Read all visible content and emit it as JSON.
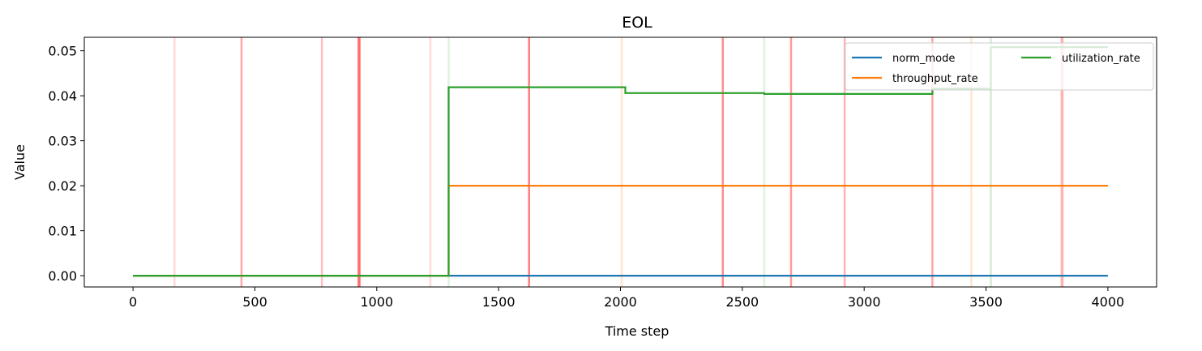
{
  "chart_data": {
    "type": "line",
    "title": "EOL",
    "xlabel": "Time step",
    "ylabel": "Value",
    "xlim": [
      -200,
      4200
    ],
    "ylim": [
      -0.0025,
      0.053
    ],
    "xticks": [
      0,
      500,
      1000,
      1500,
      2000,
      2500,
      3000,
      3500,
      4000
    ],
    "xtick_labels": [
      "0",
      "500",
      "1000",
      "1500",
      "2000",
      "2500",
      "3000",
      "3500",
      "4000"
    ],
    "yticks": [
      0.0,
      0.01,
      0.02,
      0.03,
      0.04,
      0.05
    ],
    "ytick_labels": [
      "0.00",
      "0.01",
      "0.02",
      "0.03",
      "0.04",
      "0.05"
    ],
    "grid": false,
    "legend_position": "top-right",
    "series": [
      {
        "name": "norm_mode",
        "color": "#1f77b4",
        "step": true,
        "points": [
          [
            0,
            0.0
          ],
          [
            4000,
            0.0
          ]
        ]
      },
      {
        "name": "throughput_rate",
        "color": "#ff7f0e",
        "step": true,
        "points": [
          [
            0,
            0.0
          ],
          [
            1295,
            0.0
          ],
          [
            1295,
            0.02
          ],
          [
            4000,
            0.02
          ]
        ]
      },
      {
        "name": "utilization_rate",
        "color": "#2ca02c",
        "step": true,
        "points": [
          [
            0,
            0.0
          ],
          [
            1295,
            0.0
          ],
          [
            1295,
            0.0419
          ],
          [
            2020,
            0.0419
          ],
          [
            2020,
            0.0406
          ],
          [
            2590,
            0.0406
          ],
          [
            2590,
            0.0404
          ],
          [
            3280,
            0.0404
          ],
          [
            3280,
            0.0416
          ],
          [
            3520,
            0.0416
          ],
          [
            3520,
            0.0508
          ],
          [
            4000,
            0.0508
          ]
        ]
      }
    ],
    "event_lines": [
      {
        "x": 170,
        "color": "#ff0000",
        "opacity": 0.15
      },
      {
        "x": 445,
        "color": "#ff0000",
        "opacity": 0.35
      },
      {
        "x": 775,
        "color": "#ff0000",
        "opacity": 0.25
      },
      {
        "x": 925,
        "color": "#ff0000",
        "opacity": 0.45
      },
      {
        "x": 930,
        "color": "#ff0000",
        "opacity": 0.45
      },
      {
        "x": 1220,
        "color": "#ff0000",
        "opacity": 0.15
      },
      {
        "x": 1295,
        "color": "#2ca02c",
        "opacity": 0.15
      },
      {
        "x": 1625,
        "color": "#ff0000",
        "opacity": 0.5
      },
      {
        "x": 2005,
        "color": "#ff7f0e",
        "opacity": 0.2
      },
      {
        "x": 2420,
        "color": "#ff0000",
        "opacity": 0.45
      },
      {
        "x": 2590,
        "color": "#2ca02c",
        "opacity": 0.15
      },
      {
        "x": 2700,
        "color": "#ff0000",
        "opacity": 0.4
      },
      {
        "x": 2920,
        "color": "#ff0000",
        "opacity": 0.3
      },
      {
        "x": 3280,
        "color": "#ff0000",
        "opacity": 0.35
      },
      {
        "x": 3440,
        "color": "#ff7f0e",
        "opacity": 0.2
      },
      {
        "x": 3520,
        "color": "#2ca02c",
        "opacity": 0.2
      },
      {
        "x": 3810,
        "color": "#ff0000",
        "opacity": 0.25
      },
      {
        "x": 3815,
        "color": "#ff0000",
        "opacity": 0.2
      }
    ]
  }
}
